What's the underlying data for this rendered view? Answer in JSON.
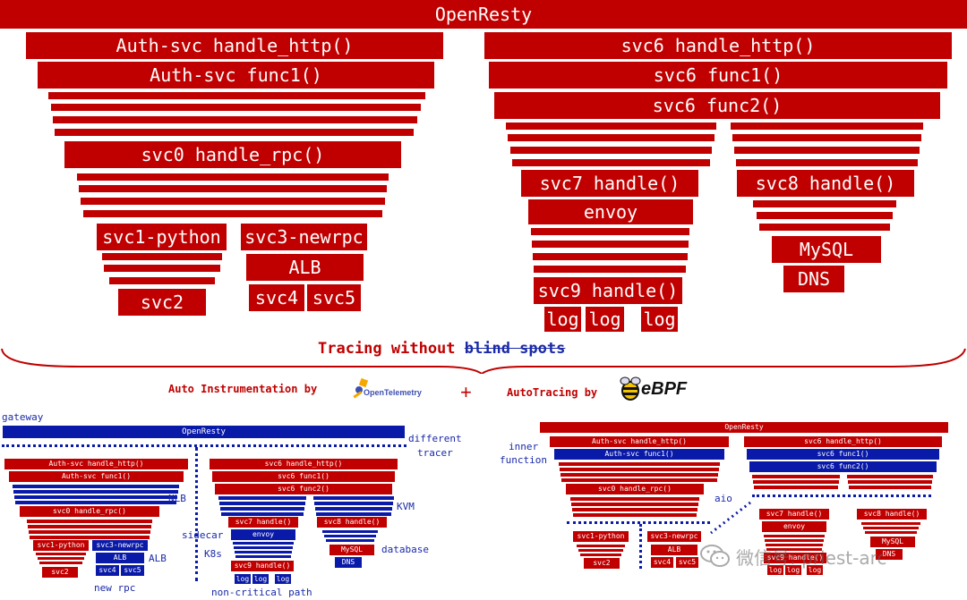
{
  "top": {
    "root": "OpenResty",
    "auth_handle": "Auth-svc handle_http()",
    "auth_func1": "Auth-svc func1()",
    "svc0": "svc0 handle_rpc()",
    "svc1": "svc1-python",
    "svc3": "svc3-newrpc",
    "alb": "ALB",
    "svc2": "svc2",
    "svc4": "svc4",
    "svc5": "svc5",
    "svc6_handle": "svc6 handle_http()",
    "svc6_func1": "svc6 func1()",
    "svc6_func2": "svc6 func2()",
    "svc7": "svc7 handle()",
    "svc8": "svc8 handle()",
    "envoy": "envoy",
    "mysql": "MySQL",
    "dns": "DNS",
    "svc9": "svc9 handle()",
    "log": "log"
  },
  "middle": {
    "title_prefix": "Tracing without ",
    "title_strike": "blind spots",
    "auto_instr": "Auto Instrumentation by",
    "otel_logo": "OpenTelemetry",
    "plus": "+",
    "auto_tracing": "AutoTracing by",
    "ebpf_logo": "eBPF"
  },
  "left": {
    "gateway": "gateway",
    "root": "OpenResty",
    "different_tracer": "different",
    "tracer": "tracer",
    "auth_handle": "Auth-svc handle_http()",
    "auth_func1": "Auth-svc func1()",
    "nlb": "NLB",
    "svc0": "svc0 handle_rpc()",
    "svc1": "svc1-python",
    "svc3": "svc3-newrpc",
    "alb_box": "ALB",
    "alb_label": "ALB",
    "svc4": "svc4",
    "svc5": "svc5",
    "svc2": "svc2",
    "new_rpc": "new rpc",
    "svc6_handle": "svc6 handle_http()",
    "svc6_func1": "svc6 func1()",
    "svc6_func2": "svc6 func2()",
    "kvm": "KVM",
    "svc7": "svc7 handle()",
    "svc8": "svc8 handle()",
    "sidecar": "sidecar",
    "envoy": "envoy",
    "k8s": "K8s",
    "mysql": "MySQL",
    "database": "database",
    "dns": "DNS",
    "svc9": "svc9 handle()",
    "log": "log",
    "non_critical": "non-critical path"
  },
  "right": {
    "root": "OpenResty",
    "inner": "inner",
    "function": "function",
    "auth_handle": "Auth-svc handle_http()",
    "auth_func1": "Auth-svc func1()",
    "svc6_handle": "svc6 handle_http()",
    "svc6_func1": "svc6 func1()",
    "svc6_func2": "svc6 func2()",
    "svc0": "svc0 handle_rpc()",
    "aio": "aio",
    "svc7": "svc7 handle()",
    "svc8": "svc8 handle()",
    "envoy": "envoy",
    "svc1": "svc1-python",
    "svc3": "svc3-newrpc",
    "alb": "ALB",
    "svc4": "svc4",
    "svc5": "svc5",
    "svc2": "svc2",
    "mysql": "MySQL",
    "dns": "DNS",
    "svc9": "svc9 handle()",
    "log": "log",
    "watermark": "微信号: priest-arc"
  },
  "colors": {
    "red": "#c00000",
    "blue": "#0a1aa8",
    "text_blue": "#1a2aa8"
  }
}
